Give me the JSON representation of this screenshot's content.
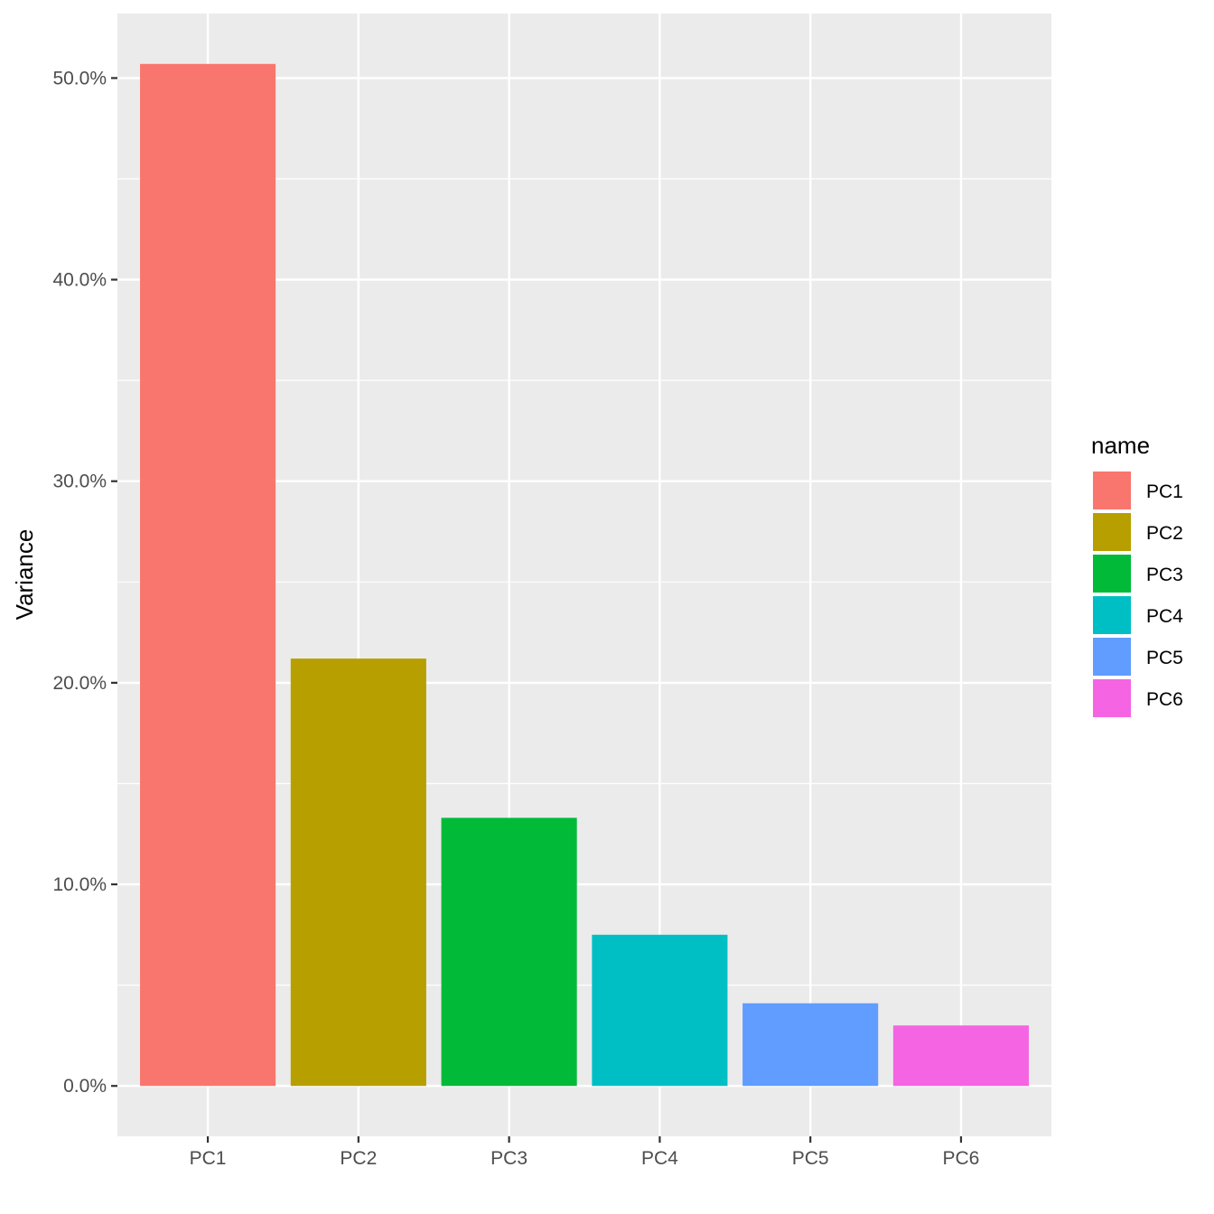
{
  "chart_data": {
    "type": "bar",
    "title": "",
    "xlabel": "",
    "ylabel": "Variance",
    "categories": [
      "PC1",
      "PC2",
      "PC3",
      "PC4",
      "PC5",
      "PC6"
    ],
    "values": [
      50.7,
      21.2,
      13.3,
      7.5,
      4.1,
      3.0
    ],
    "colors": [
      "#F8766D",
      "#B79F00",
      "#00BA38",
      "#00BFC4",
      "#619CFF",
      "#F564E3"
    ],
    "ylim": [
      -2.5,
      53.2
    ],
    "y_ticks": [
      0,
      10,
      20,
      30,
      40,
      50
    ],
    "y_tick_labels": [
      "0.0%",
      "10.0%",
      "20.0%",
      "30.0%",
      "40.0%",
      "50.0%"
    ],
    "grid": true,
    "panel_color": "#EBEBEB",
    "gridline_color": "#FFFFFF",
    "legend": {
      "title": "name",
      "position": "right",
      "labels": [
        "PC1",
        "PC2",
        "PC3",
        "PC4",
        "PC5",
        "PC6"
      ]
    }
  }
}
